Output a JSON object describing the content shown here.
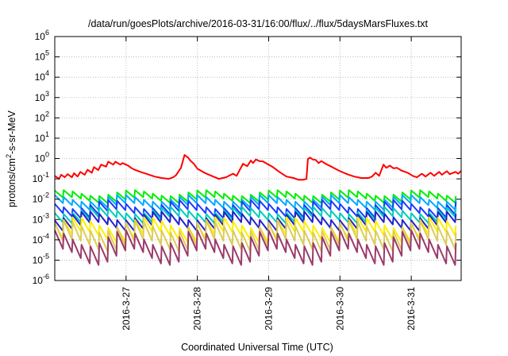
{
  "chart_data": {
    "type": "line",
    "title": "/data/run/goesPlots/archive/2016-03-31/16:00/flux/../flux/5daysMarsFluxes.txt",
    "xlabel": "Coordinated Universal Time (UTC)",
    "ylabel": "protons/cm²-s-sr-MeV",
    "ylabel_parts": {
      "pre": "protons/cm",
      "sup": "2",
      "post": "-s-sr-MeV"
    },
    "xlim_days": [
      0.0,
      5.7
    ],
    "x_ticks": [
      {
        "label": "2016-3-27",
        "day": 1.0
      },
      {
        "label": "2016-3-28",
        "day": 2.0
      },
      {
        "label": "2016-3-29",
        "day": 3.0
      },
      {
        "label": "2016-3-30",
        "day": 4.0
      },
      {
        "label": "2016-3-31",
        "day": 5.0
      }
    ],
    "y_scale": "log",
    "ylim": [
      1e-06,
      1000000.0
    ],
    "y_ticks": [
      {
        "base": "10",
        "exp": "6",
        "value": 1000000.0
      },
      {
        "base": "10",
        "exp": "5",
        "value": 100000.0
      },
      {
        "base": "10",
        "exp": "4",
        "value": 10000.0
      },
      {
        "base": "10",
        "exp": "3",
        "value": 1000.0
      },
      {
        "base": "10",
        "exp": "2",
        "value": 100.0
      },
      {
        "base": "10",
        "exp": "1",
        "value": 10.0
      },
      {
        "base": "10",
        "exp": "0",
        "value": 1.0
      },
      {
        "base": "10",
        "exp": "-1",
        "value": 0.1
      },
      {
        "base": "10",
        "exp": "-2",
        "value": 0.01
      },
      {
        "base": "10",
        "exp": "-3",
        "value": 0.001
      },
      {
        "base": "10",
        "exp": "-4",
        "value": 0.0001
      },
      {
        "base": "10",
        "exp": "-5",
        "value": 1e-05
      },
      {
        "base": "10",
        "exp": "-6",
        "value": 1e-06
      }
    ],
    "grid": true,
    "series": [
      {
        "color": "#ff0000",
        "x": [
          0.0,
          0.06,
          0.09,
          0.14,
          0.18,
          0.24,
          0.27,
          0.32,
          0.36,
          0.42,
          0.46,
          0.52,
          0.55,
          0.61,
          0.65,
          0.72,
          0.75,
          0.82,
          0.85,
          0.92,
          0.95,
          1.03,
          1.07,
          1.12,
          1.2,
          1.3,
          1.4,
          1.5,
          1.6,
          1.66,
          1.7,
          1.77,
          1.82,
          1.87,
          1.9,
          1.95,
          2.0,
          2.1,
          2.2,
          2.3,
          2.4,
          2.5,
          2.55,
          2.58,
          2.64,
          2.7,
          2.75,
          2.78,
          2.82,
          2.87,
          2.92,
          2.96,
          3.05,
          3.15,
          3.25,
          3.35,
          3.42,
          3.48,
          3.53,
          3.55,
          3.58,
          3.62,
          3.66,
          3.7,
          3.74,
          3.8,
          3.88,
          3.98,
          4.1,
          4.2,
          4.3,
          4.4,
          4.45,
          4.5,
          4.55,
          4.61,
          4.65,
          4.7,
          4.75,
          4.8,
          4.86,
          4.95,
          5.02,
          5.08,
          5.15,
          5.2,
          5.27,
          5.32,
          5.39,
          5.43,
          5.5,
          5.54,
          5.62,
          5.66,
          5.7
        ],
        "values": [
          0.14,
          0.1,
          0.16,
          0.12,
          0.17,
          0.12,
          0.19,
          0.13,
          0.22,
          0.16,
          0.28,
          0.2,
          0.38,
          0.27,
          0.5,
          0.4,
          0.7,
          0.5,
          0.7,
          0.5,
          0.6,
          0.45,
          0.35,
          0.28,
          0.22,
          0.17,
          0.13,
          0.11,
          0.1,
          0.12,
          0.15,
          0.35,
          1.5,
          1.1,
          0.8,
          0.55,
          0.32,
          0.2,
          0.14,
          0.1,
          0.12,
          0.18,
          0.14,
          0.22,
          0.55,
          0.42,
          0.8,
          0.6,
          0.9,
          0.75,
          0.72,
          0.6,
          0.4,
          0.22,
          0.13,
          0.11,
          0.09,
          0.09,
          0.1,
          0.95,
          1.1,
          0.9,
          0.85,
          0.6,
          0.75,
          0.55,
          0.4,
          0.26,
          0.17,
          0.13,
          0.11,
          0.11,
          0.13,
          0.2,
          0.14,
          0.5,
          0.35,
          0.45,
          0.33,
          0.35,
          0.26,
          0.2,
          0.14,
          0.12,
          0.18,
          0.13,
          0.2,
          0.14,
          0.22,
          0.16,
          0.24,
          0.17,
          0.22,
          0.18,
          0.25
        ]
      },
      {
        "color": "#00ee00",
        "base": 0.02,
        "depth": 0.45,
        "osc": 0.3
      },
      {
        "color": "#00aaff",
        "base": 0.011,
        "depth": 0.4,
        "osc": 0.35
      },
      {
        "color": "#1a3cff",
        "base": 0.0055,
        "depth": 0.35,
        "osc": 0.45
      },
      {
        "color": "#00ccbb",
        "base": 0.0028,
        "depth": 0.35,
        "osc": 0.35
      },
      {
        "color": "#2222cc",
        "base": 0.0015,
        "depth": 0.3,
        "osc": 0.45
      },
      {
        "color": "#ffee00",
        "base": 0.0007,
        "depth": 0.2,
        "osc": 0.55
      },
      {
        "color": "#ddcc55",
        "base": 0.00045,
        "depth": 0.12,
        "osc": 0.6
      },
      {
        "color": "#9a3a6a",
        "base": 0.00012,
        "depth": 0.12,
        "osc": 0.8
      }
    ]
  }
}
